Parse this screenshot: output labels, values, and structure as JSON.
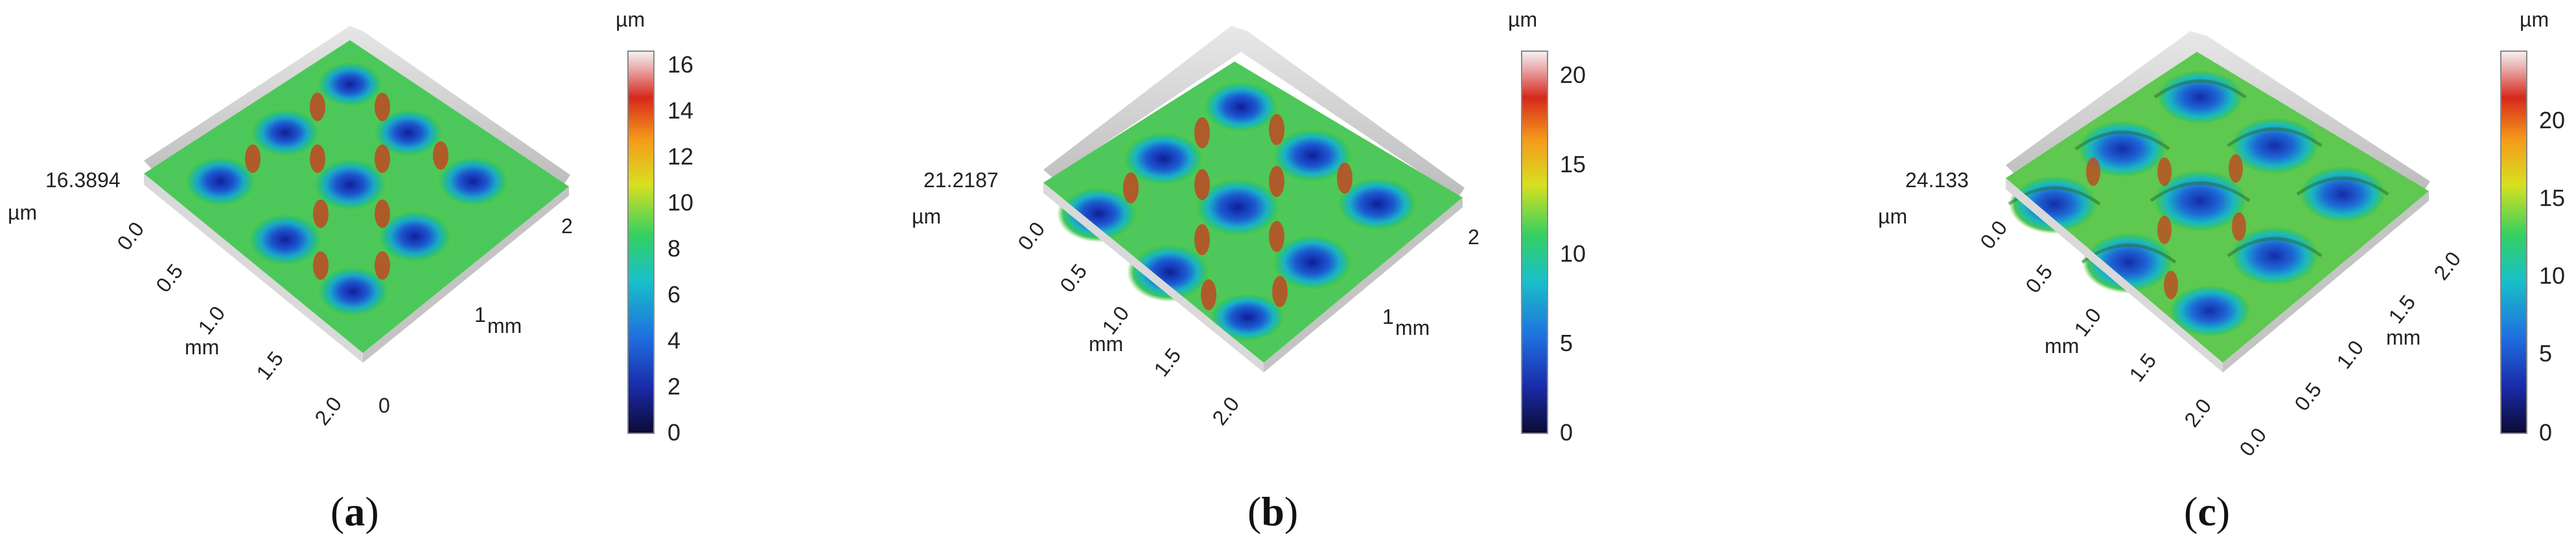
{
  "panels": [
    {
      "caption": "a",
      "z_value": "16.3894",
      "z_unit": "µm",
      "colorbar_unit": "µm",
      "colorbar_ticks": [
        "16",
        "14",
        "12",
        "10",
        "8",
        "6",
        "4",
        "2",
        "0"
      ],
      "left_axis_unit": "mm",
      "left_axis_ticks": [
        "0.0",
        "0.5",
        "1.0",
        "1.5",
        "2.0"
      ],
      "right_axis_unit": "mm",
      "right_axis_ticks": [
        "0",
        "1",
        "2"
      ]
    },
    {
      "caption": "b",
      "z_value": "21.2187",
      "z_unit": "µm",
      "colorbar_unit": "µm",
      "colorbar_ticks": [
        "20",
        "15",
        "10",
        "5",
        "0"
      ],
      "left_axis_unit": "mm",
      "left_axis_ticks": [
        "0.0",
        "0.5",
        "1.0",
        "1.5",
        "2.0"
      ],
      "right_axis_unit": "mm",
      "right_axis_ticks": [
        "1",
        "2"
      ]
    },
    {
      "caption": "c",
      "z_value": "24.133",
      "z_unit": "µm",
      "colorbar_unit": "µm",
      "colorbar_ticks": [
        "20",
        "15",
        "10",
        "5",
        "0"
      ],
      "left_axis_unit": "mm",
      "left_axis_ticks": [
        "0.0",
        "0.5",
        "1.0",
        "1.5",
        "2.0"
      ],
      "right_axis_unit": "mm",
      "right_axis_ticks": [
        "0.0",
        "0.5",
        "1.0",
        "1.5",
        "2.0"
      ]
    }
  ]
}
